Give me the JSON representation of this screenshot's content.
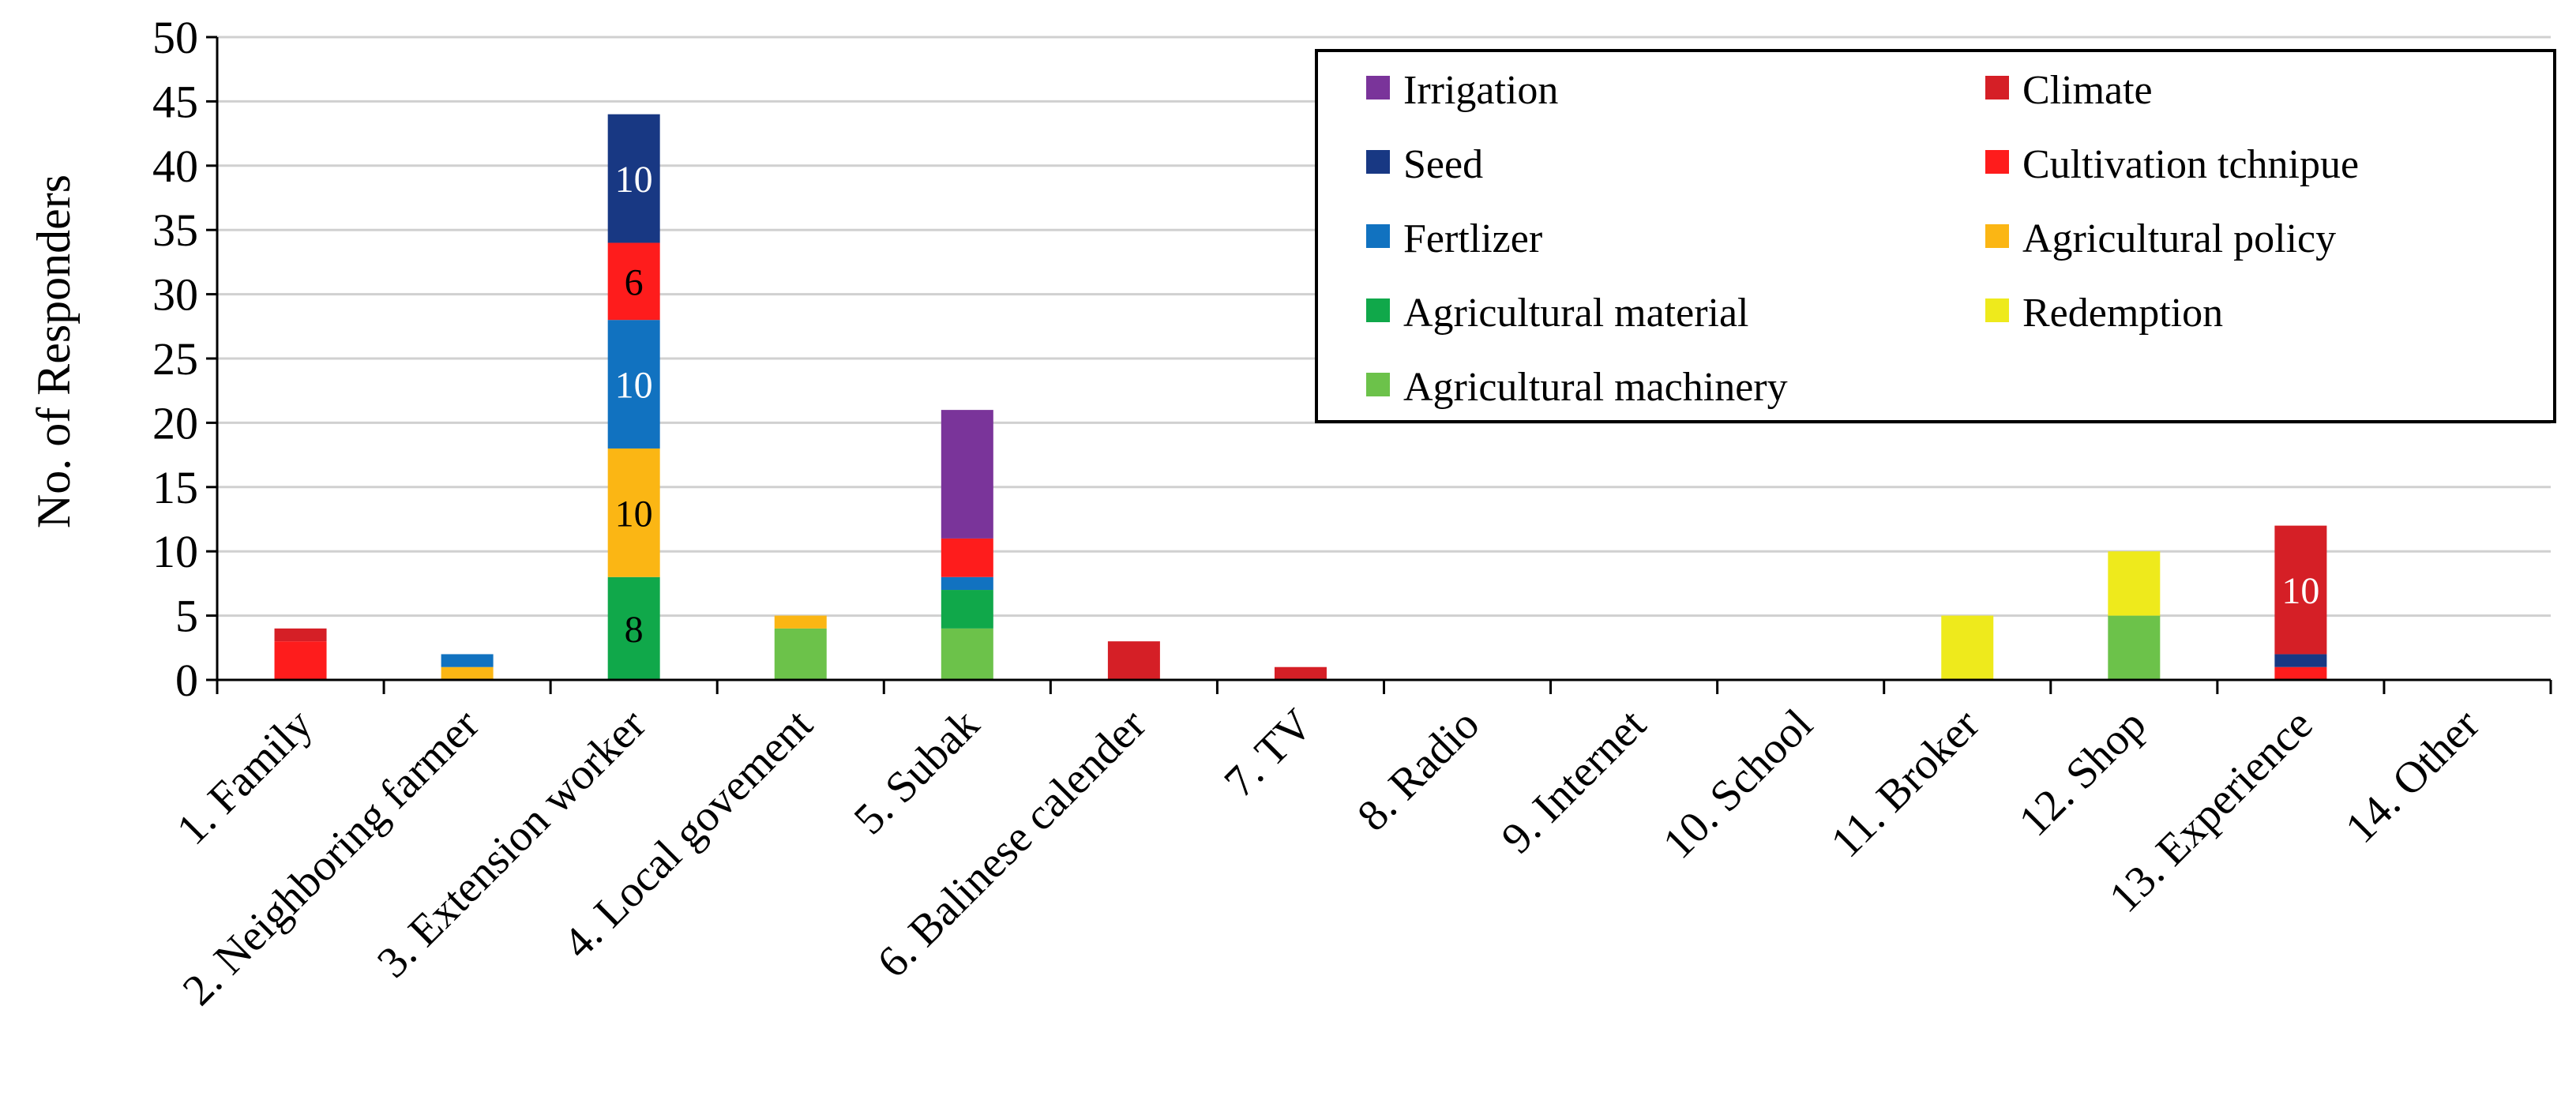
{
  "chart_data": {
    "type": "bar",
    "stacked": true,
    "title": "",
    "xlabel": "",
    "ylabel": "No. of Responders",
    "ylim": [
      0,
      50
    ],
    "yticks": [
      0,
      5,
      10,
      15,
      20,
      25,
      30,
      35,
      40,
      45,
      50
    ],
    "grid": true,
    "legend_position": "top-right",
    "categories": [
      "1. Family",
      "2. Neighboring farmer",
      "3. Extension worker",
      "4. Local govement",
      "5. Subak",
      "6. Balinese calender",
      "7. TV",
      "8. Radio",
      "9. Internet",
      "10. School",
      "11. Broker",
      "12. Shop",
      "13. Experience",
      "14. Other"
    ],
    "series": [
      {
        "name": "Agricultural machinery",
        "color": "#6cc24a",
        "values": [
          0,
          0,
          0,
          4,
          4,
          0,
          0,
          0,
          0,
          0,
          0,
          5,
          0,
          0
        ]
      },
      {
        "name": "Agricultural material",
        "color": "#10a84a",
        "values": [
          0,
          0,
          8,
          0,
          3,
          0,
          0,
          0,
          0,
          0,
          0,
          0,
          0,
          0
        ]
      },
      {
        "name": "Redemption",
        "color": "#eeea1c",
        "values": [
          0,
          0,
          0,
          0,
          0,
          0,
          0,
          0,
          0,
          0,
          5,
          5,
          0,
          0
        ]
      },
      {
        "name": "Agricultural policy",
        "color": "#fbb614",
        "values": [
          0,
          1,
          10,
          1,
          0,
          0,
          0,
          0,
          0,
          0,
          0,
          0,
          0,
          0
        ]
      },
      {
        "name": "Fertlizer",
        "color": "#1172c0",
        "values": [
          0,
          1,
          10,
          0,
          1,
          0,
          0,
          0,
          0,
          0,
          0,
          0,
          0,
          0
        ]
      },
      {
        "name": "Cultivation tchnipue",
        "color": "#fe1c1c",
        "values": [
          3,
          0,
          6,
          0,
          3,
          0,
          0,
          0,
          0,
          0,
          0,
          0,
          1,
          0
        ]
      },
      {
        "name": "Seed",
        "color": "#183883",
        "values": [
          0,
          0,
          10,
          0,
          0,
          0,
          0,
          0,
          0,
          0,
          0,
          0,
          1,
          0
        ]
      },
      {
        "name": "Climate",
        "color": "#d51f26",
        "values": [
          1,
          0,
          0,
          0,
          0,
          3,
          1,
          0,
          0,
          0,
          0,
          0,
          10,
          0
        ]
      },
      {
        "name": "Irrigation",
        "color": "#7a349a",
        "values": [
          0,
          0,
          0,
          0,
          10,
          0,
          0,
          0,
          0,
          0,
          0,
          0,
          0,
          0
        ]
      }
    ],
    "data_labels": [
      {
        "category": "3. Extension worker",
        "series": "Agricultural material",
        "text": "8",
        "color": "#000000"
      },
      {
        "category": "3. Extension worker",
        "series": "Agricultural policy",
        "text": "10",
        "color": "#000000"
      },
      {
        "category": "3. Extension worker",
        "series": "Fertlizer",
        "text": "10",
        "color": "#ffffff"
      },
      {
        "category": "3. Extension worker",
        "series": "Cultivation tchnipue",
        "text": "6",
        "color": "#000000"
      },
      {
        "category": "3. Extension worker",
        "series": "Seed",
        "text": "10",
        "color": "#ffffff"
      },
      {
        "category": "13. Experience",
        "series": "Climate",
        "text": "10",
        "color": "#ffffff"
      }
    ],
    "legend": {
      "columns": [
        [
          "Irrigation",
          "Seed",
          "Fertlizer",
          "Agricultural material",
          "Agricultural machinery"
        ],
        [
          "Climate",
          "Cultivation tchnipue",
          "Agricultural policy",
          "Redemption"
        ]
      ]
    }
  }
}
